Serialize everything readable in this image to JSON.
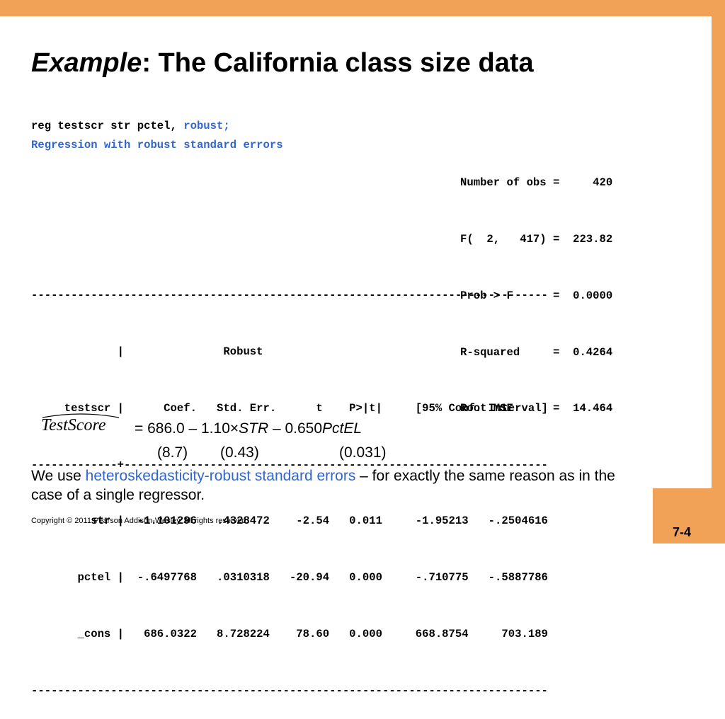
{
  "slide": {
    "title_italic": "Example",
    "title_rest": ":  The California class size data",
    "slide_number": "7-4",
    "copyright": "Copyright © 2011 Pearson Addison-Wesley. All rights reserved."
  },
  "stata": {
    "command": "reg testscr str pctel, ",
    "command_option": "robust;",
    "header": "Regression with robust standard errors",
    "stats": [
      "Number of obs =     420",
      "F(  2,   417) =  223.82",
      "Prob > F      =  0.0000",
      "R-squared     =  0.4264",
      "Root MSE      =  14.464"
    ],
    "table": {
      "rule": "------------------------------------------------------------------------------",
      "separator": "-------------+----------------------------------------------------------------",
      "header_line1": "             |               Robust",
      "header_line2": "     testscr |      Coef.   Std. Err.      t    P>|t|     [95% Conf. Interval]",
      "rows": [
        "         str |  -1.101296   .4328472    -2.54   0.011     -1.95213   -.2504616",
        "       pctel |  -.6497768   .0310318   -20.94   0.000     -.710775   -.5887786",
        "       _cons |   686.0322   8.728224    78.60   0.000     668.8754     703.189"
      ]
    }
  },
  "equation": {
    "lhs": "TestScore",
    "rhs_1": "= 686.0 – 1.10×",
    "var_str": "STR",
    "rhs_2": " – 0.650",
    "var_pctel": "PctEL",
    "se": [
      "(8.7)",
      "(0.43)",
      "(0.031)"
    ]
  },
  "note": {
    "before": "We use ",
    "highlight": "heteroskedasticity-robust standard errors",
    "after": " – for exactly the same reason as in the case of a single regressor."
  },
  "colors": {
    "frame": "#F2A257",
    "accent_blue": "#3366CC"
  }
}
